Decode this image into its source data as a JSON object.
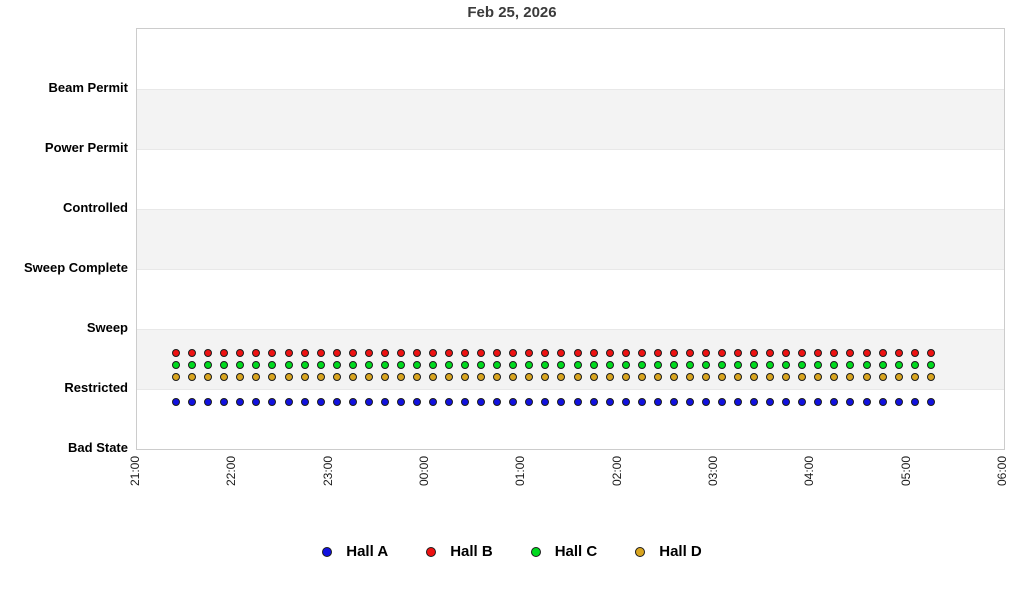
{
  "chart_data": {
    "type": "scatter",
    "title": "Feb 25, 2026",
    "x_axis": {
      "ticks": [
        "21:00",
        "22:00",
        "23:00",
        "00:00",
        "01:00",
        "02:00",
        "03:00",
        "04:00",
        "05:00",
        "06:00"
      ],
      "range_minutes": 540,
      "tick_interval_minutes": 60,
      "label_rotation_degrees": 90
    },
    "y_axis": {
      "categories_bottom_to_top": [
        "Bad State",
        "Restricted",
        "Sweep",
        "Sweep Complete",
        "Controlled",
        "Power Permit",
        "Beam Permit"
      ],
      "banded_rows": true
    },
    "sampling": {
      "start_time": "21:25",
      "end_time": "05:15",
      "interval_minutes": 10,
      "points_per_series": 48
    },
    "series": [
      {
        "name": "Hall A",
        "color": "#1212e0",
        "marker": "circle-icon",
        "state": "Restricted",
        "row_offset": -0.23
      },
      {
        "name": "Hall B",
        "color": "#ee1111",
        "marker": "circle-icon",
        "state": "Restricted",
        "row_offset": 0.58
      },
      {
        "name": "Hall C",
        "color": "#00d91e",
        "marker": "circle-icon",
        "state": "Restricted",
        "row_offset": 0.38
      },
      {
        "name": "Hall D",
        "color": "#d9a520",
        "marker": "circle-icon",
        "state": "Restricted",
        "row_offset": 0.18
      }
    ],
    "legend": {
      "position": "bottom",
      "items": [
        "Hall A",
        "Hall B",
        "Hall C",
        "Hall D"
      ]
    },
    "grid": {
      "vertical_lines": false,
      "band_colors": [
        "#ffffff",
        "#f3f3f3"
      ],
      "band_line_color": "#e8e8e8"
    }
  },
  "colors": {
    "plot_border": "#cccccc",
    "title_text": "#3b3b3b",
    "axis_text": "#000000",
    "background": "#ffffff"
  }
}
